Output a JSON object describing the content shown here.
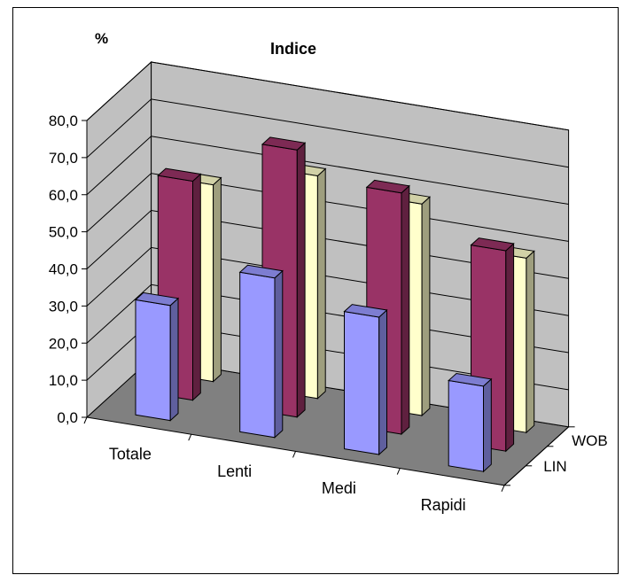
{
  "chart_data": {
    "type": "bar",
    "title": "Indice",
    "ylabel": "%",
    "ylim": [
      0,
      80
    ],
    "yticks": [
      "0,0",
      "10,0",
      "20,0",
      "30,0",
      "40,0",
      "50,0",
      "60,0",
      "70,0",
      "80,0"
    ],
    "categories": [
      "Totale",
      "Lenti",
      "Medi",
      "Rapidi"
    ],
    "depth_labels": [
      "LIN",
      "WOB"
    ],
    "series": [
      {
        "name": "",
        "values": [
          31,
          43,
          37,
          23
        ]
      },
      {
        "name": "",
        "values": [
          59,
          72,
          65,
          54
        ]
      },
      {
        "name": "",
        "values": [
          53,
          60,
          57,
          47
        ]
      }
    ],
    "grid": true
  },
  "colors": {
    "front_series": "#9999ff",
    "middle_series": "#993366",
    "back_series": "#ffffcc",
    "wall": "#c0c0c0",
    "floor": "#808080"
  }
}
